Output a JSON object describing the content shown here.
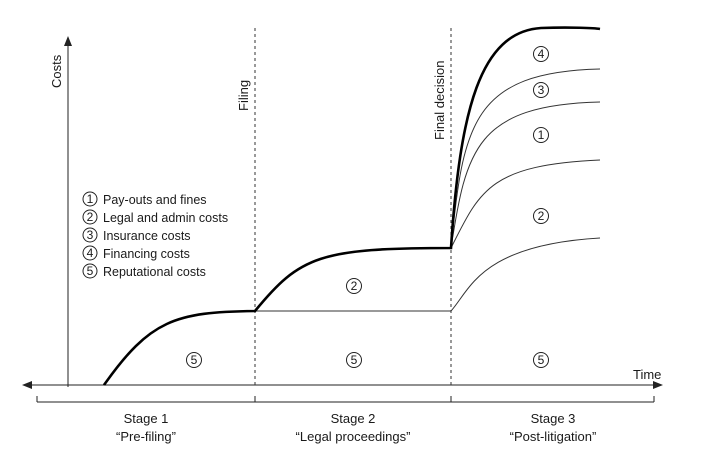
{
  "axes": {
    "y_label": "Costs",
    "x_label": "Time"
  },
  "markers": {
    "filing": "Filing",
    "final_decision": "Final decision"
  },
  "legend": [
    {
      "num": "1",
      "label": "Pay-outs and fines"
    },
    {
      "num": "2",
      "label": "Legal and admin costs"
    },
    {
      "num": "3",
      "label": "Insurance costs"
    },
    {
      "num": "4",
      "label": "Financing costs"
    },
    {
      "num": "5",
      "label": "Reputational costs"
    }
  ],
  "stages": [
    {
      "title": "Stage 1",
      "subtitle": "“Pre-filing”"
    },
    {
      "title": "Stage 2",
      "subtitle": "“Legal proceedings”"
    },
    {
      "title": "Stage 3",
      "subtitle": "“Post-litigation”"
    }
  ],
  "region_labels": {
    "stage1_5": "5",
    "stage2_5": "5",
    "stage2_2": "2",
    "stage3_5": "5",
    "stage3_2": "2",
    "stage3_1": "1",
    "stage3_3": "3",
    "stage3_4": "4"
  }
}
